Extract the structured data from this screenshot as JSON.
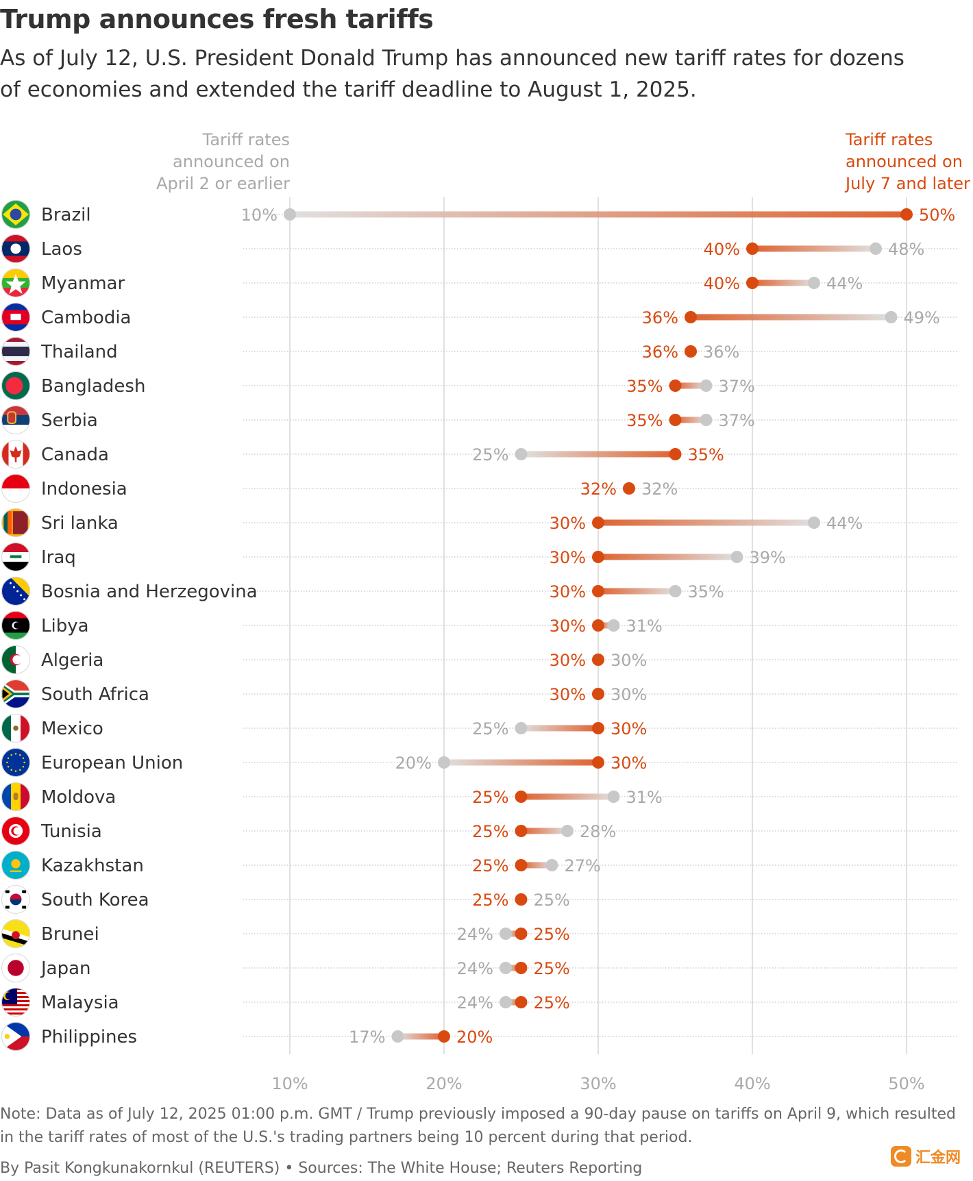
{
  "title": "Trump announces fresh tariffs",
  "subtitle": "As of July 12, U.S. President Donald Trump has announced new tariff rates for dozens of economies and extended the tariff deadline to August 1, 2025.",
  "colors": {
    "old": "#c8c8c8",
    "new": "#d94a10",
    "old_text": "#a9a9a9",
    "grid": "#cccccc"
  },
  "chart_data": {
    "type": "dumbbell",
    "unit": "%",
    "x_range": [
      10,
      50
    ],
    "x_ticks": [
      "10%",
      "20%",
      "30%",
      "40%",
      "50%"
    ],
    "x_tick_values": [
      10,
      20,
      30,
      40,
      50
    ],
    "series_labels": {
      "old": "Tariff rates announced on April 2 or earlier",
      "new": "Tariff rates announced on July 7 and later"
    },
    "series_label_lines": {
      "old": [
        "Tariff rates",
        "announced on",
        "April 2 or earlier"
      ],
      "new": [
        "Tariff rates",
        "announced on",
        "July 7 and later"
      ]
    },
    "rows": [
      {
        "country": "Brazil",
        "flag": "brazil-flag",
        "old": 10,
        "new": 50
      },
      {
        "country": "Laos",
        "flag": "laos-flag",
        "old": 48,
        "new": 40
      },
      {
        "country": "Myanmar",
        "flag": "myanmar-flag",
        "old": 44,
        "new": 40
      },
      {
        "country": "Cambodia",
        "flag": "cambodia-flag",
        "old": 49,
        "new": 36
      },
      {
        "country": "Thailand",
        "flag": "thailand-flag",
        "old": 36,
        "new": 36
      },
      {
        "country": "Bangladesh",
        "flag": "bangladesh-flag",
        "old": 37,
        "new": 35
      },
      {
        "country": "Serbia",
        "flag": "serbia-flag",
        "old": 37,
        "new": 35
      },
      {
        "country": "Canada",
        "flag": "canada-flag",
        "old": 25,
        "new": 35
      },
      {
        "country": "Indonesia",
        "flag": "indonesia-flag",
        "old": 32,
        "new": 32
      },
      {
        "country": "Sri lanka",
        "flag": "sri-lanka-flag",
        "old": 44,
        "new": 30
      },
      {
        "country": "Iraq",
        "flag": "iraq-flag",
        "old": 39,
        "new": 30
      },
      {
        "country": "Bosnia and Herzegovina",
        "flag": "bosnia-flag",
        "old": 35,
        "new": 30
      },
      {
        "country": "Libya",
        "flag": "libya-flag",
        "old": 31,
        "new": 30
      },
      {
        "country": "Algeria",
        "flag": "algeria-flag",
        "old": 30,
        "new": 30
      },
      {
        "country": "South Africa",
        "flag": "south-africa-flag",
        "old": 30,
        "new": 30
      },
      {
        "country": "Mexico",
        "flag": "mexico-flag",
        "old": 25,
        "new": 30
      },
      {
        "country": "European Union",
        "flag": "eu-flag",
        "old": 20,
        "new": 30
      },
      {
        "country": "Moldova",
        "flag": "moldova-flag",
        "old": 31,
        "new": 25
      },
      {
        "country": "Tunisia",
        "flag": "tunisia-flag",
        "old": 28,
        "new": 25
      },
      {
        "country": "Kazakhstan",
        "flag": "kazakhstan-flag",
        "old": 27,
        "new": 25
      },
      {
        "country": "South Korea",
        "flag": "south-korea-flag",
        "old": 25,
        "new": 25
      },
      {
        "country": "Brunei",
        "flag": "brunei-flag",
        "old": 24,
        "new": 25
      },
      {
        "country": "Japan",
        "flag": "japan-flag",
        "old": 24,
        "new": 25
      },
      {
        "country": "Malaysia",
        "flag": "malaysia-flag",
        "old": 24,
        "new": 25
      },
      {
        "country": "Philippines",
        "flag": "philippines-flag",
        "old": 17,
        "new": 20
      }
    ]
  },
  "note": "Note: Data as of July 12, 2025 01:00 p.m. GMT / Trump previously imposed a 90-day pause on tariffs on April 9, which resulted in the tariff rates of most of the U.S.'s trading partners being 10 percent during that period.",
  "credit": "By Pasit Kongkunakornkul (REUTERS) • Sources: The White House; Reuters Reporting",
  "watermark": "汇金网"
}
